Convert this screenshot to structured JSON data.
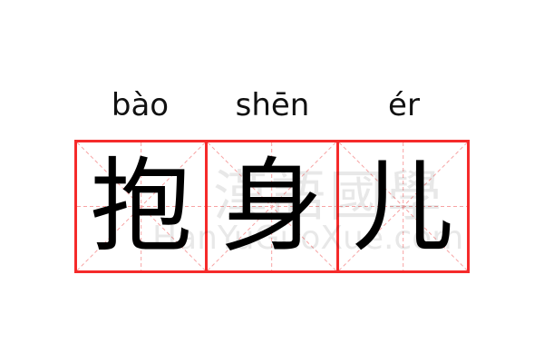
{
  "pinyin": [
    "bào",
    "shēn",
    "ér"
  ],
  "characters": [
    "抱",
    "身",
    "儿"
  ],
  "watermark": {
    "chinese": "漢語國學",
    "latin": "HanYuGuoXue.com"
  },
  "colors": {
    "border": "#f52a2a",
    "guides": "#f7a3a3",
    "text": "#000000"
  }
}
